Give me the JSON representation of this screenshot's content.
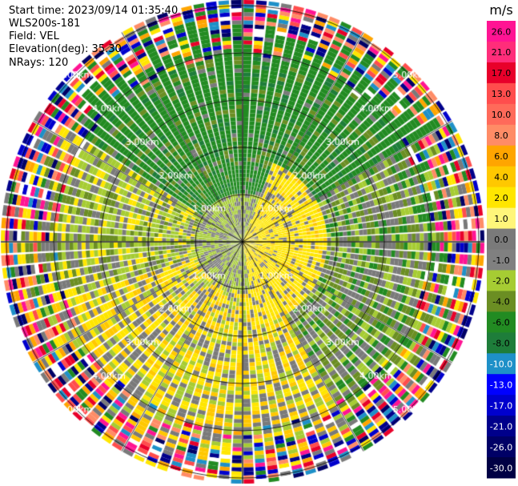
{
  "header": {
    "start_time": "Start time: 2023/09/14 01:35:40",
    "instrument": "WLS200s-181",
    "field": "Field: VEL",
    "elevation": "Elevation(deg): 35.30",
    "nrays": "NRays: 120"
  },
  "ring_labels": [
    "1.00km",
    "2.00km",
    "3.00km",
    "4.00km",
    "5.00km"
  ],
  "colorbar": {
    "unit": "m/s",
    "ticks": [
      "26.0",
      "21.0",
      "17.0",
      "13.0",
      "10.0",
      "8.0",
      "6.0",
      "4.0",
      "2.0",
      "1.0",
      "0.0",
      "-1.0",
      "-2.0",
      "-4.0",
      "-6.0",
      "-8.0",
      "-10.0",
      "-13.0",
      "-17.0",
      "-21.0",
      "-26.0",
      "-30.0"
    ],
    "colors": [
      "#ff1493",
      "#ff2d7a",
      "#e8002a",
      "#ff4d4d",
      "#ff6a5a",
      "#ff8c66",
      "#ffa500",
      "#ffc800",
      "#ffe600",
      "#fff67a",
      "#7a7a7a",
      "#808080",
      "#a6cc33",
      "#6b8e23",
      "#228b22",
      "#1e7d3a",
      "#1e90c8",
      "#0000ff",
      "#0000cd",
      "#00008b",
      "#000066",
      "#000044"
    ]
  }
}
